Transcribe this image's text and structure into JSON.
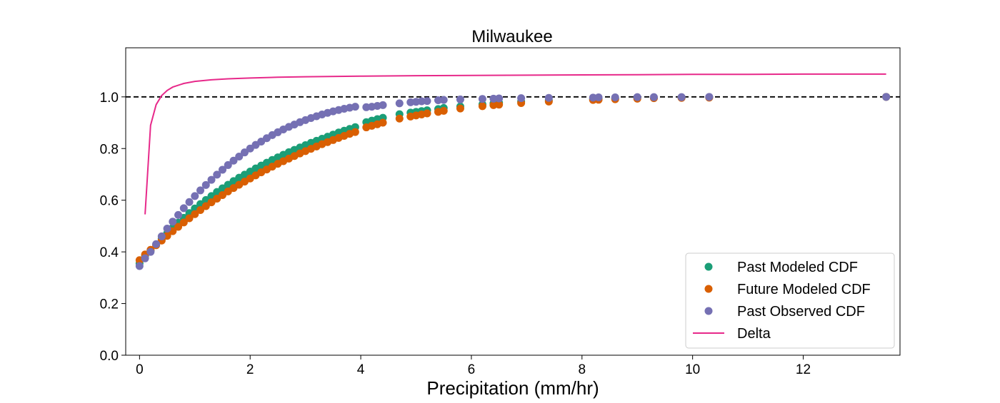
{
  "chart_data": {
    "type": "scatter",
    "title": "Milwaukee",
    "xlabel": "Precipitation (mm/hr)",
    "ylabel": "",
    "xlim": [
      -0.25,
      13.75
    ],
    "ylim": [
      0.0,
      1.19
    ],
    "x_ticks": [
      0,
      2,
      4,
      6,
      8,
      10,
      12
    ],
    "y_ticks": [
      0.0,
      0.2,
      0.4,
      0.6,
      0.8,
      1.0
    ],
    "y_tick_labels": [
      "0.0",
      "0.2",
      "0.4",
      "0.6",
      "0.8",
      "1.0"
    ],
    "reference_line": {
      "y": 1.0,
      "style": "dashed",
      "color": "#000000"
    },
    "grid": false,
    "legend_position": "lower-right",
    "series": [
      {
        "name": "Past Modeled CDF",
        "kind": "scatter",
        "color": "#1b9e77",
        "x": [
          0.0,
          0.1,
          0.2,
          0.3,
          0.4,
          0.5,
          0.6,
          0.7,
          0.8,
          0.9,
          1.0,
          1.1,
          1.2,
          1.3,
          1.4,
          1.5,
          1.6,
          1.7,
          1.8,
          1.9,
          2.0,
          2.1,
          2.2,
          2.3,
          2.4,
          2.5,
          2.6,
          2.7,
          2.8,
          2.9,
          3.0,
          3.1,
          3.2,
          3.3,
          3.4,
          3.5,
          3.6,
          3.7,
          3.8,
          3.9,
          4.1,
          4.2,
          4.3,
          4.4,
          4.7,
          4.9,
          5.0,
          5.1,
          5.2,
          5.4,
          5.5,
          5.8,
          6.2,
          6.4,
          6.5,
          6.9,
          7.4,
          8.2,
          8.3,
          8.6,
          9.0,
          9.3,
          9.8,
          10.3,
          13.5
        ],
        "y": [
          0.355,
          0.385,
          0.405,
          0.428,
          0.45,
          0.472,
          0.493,
          0.513,
          0.532,
          0.55,
          0.568,
          0.585,
          0.601,
          0.616,
          0.632,
          0.646,
          0.66,
          0.674,
          0.687,
          0.699,
          0.711,
          0.723,
          0.734,
          0.745,
          0.756,
          0.766,
          0.776,
          0.786,
          0.795,
          0.804,
          0.813,
          0.822,
          0.83,
          0.838,
          0.846,
          0.854,
          0.862,
          0.869,
          0.876,
          0.883,
          0.902,
          0.908,
          0.914,
          0.919,
          0.933,
          0.939,
          0.942,
          0.945,
          0.948,
          0.953,
          0.957,
          0.963,
          0.971,
          0.975,
          0.977,
          0.982,
          0.987,
          0.992,
          0.993,
          0.994,
          0.995,
          0.996,
          0.997,
          0.998,
          1.0
        ]
      },
      {
        "name": "Future Modeled CDF",
        "kind": "scatter",
        "color": "#d95f02",
        "x": [
          0.0,
          0.1,
          0.2,
          0.3,
          0.4,
          0.5,
          0.6,
          0.7,
          0.8,
          0.9,
          1.0,
          1.1,
          1.2,
          1.3,
          1.4,
          1.5,
          1.6,
          1.7,
          1.8,
          1.9,
          2.0,
          2.1,
          2.2,
          2.3,
          2.4,
          2.5,
          2.6,
          2.7,
          2.8,
          2.9,
          3.0,
          3.1,
          3.2,
          3.3,
          3.4,
          3.5,
          3.6,
          3.7,
          3.8,
          3.9,
          4.1,
          4.2,
          4.3,
          4.4,
          4.7,
          4.9,
          5.0,
          5.1,
          5.2,
          5.4,
          5.5,
          5.8,
          6.2,
          6.4,
          6.5,
          6.9,
          7.4,
          8.2,
          8.3,
          8.6,
          9.0,
          9.3,
          9.8,
          10.3,
          13.5
        ],
        "y": [
          0.368,
          0.39,
          0.408,
          0.426,
          0.444,
          0.462,
          0.48,
          0.497,
          0.514,
          0.53,
          0.546,
          0.562,
          0.577,
          0.592,
          0.606,
          0.62,
          0.634,
          0.647,
          0.66,
          0.672,
          0.684,
          0.696,
          0.708,
          0.719,
          0.73,
          0.741,
          0.751,
          0.761,
          0.771,
          0.781,
          0.79,
          0.799,
          0.808,
          0.817,
          0.825,
          0.833,
          0.841,
          0.849,
          0.857,
          0.864,
          0.882,
          0.888,
          0.894,
          0.9,
          0.916,
          0.924,
          0.928,
          0.932,
          0.936,
          0.942,
          0.946,
          0.955,
          0.964,
          0.968,
          0.97,
          0.976,
          0.982,
          0.988,
          0.989,
          0.991,
          0.993,
          0.995,
          0.996,
          0.997,
          1.0
        ]
      },
      {
        "name": "Past Observed CDF",
        "kind": "scatter",
        "color": "#7570b3",
        "x": [
          0.0,
          0.1,
          0.2,
          0.3,
          0.4,
          0.5,
          0.6,
          0.7,
          0.8,
          0.9,
          1.0,
          1.1,
          1.2,
          1.3,
          1.4,
          1.5,
          1.6,
          1.7,
          1.8,
          1.9,
          2.0,
          2.1,
          2.2,
          2.3,
          2.4,
          2.5,
          2.6,
          2.7,
          2.8,
          2.9,
          3.0,
          3.1,
          3.2,
          3.3,
          3.4,
          3.5,
          3.6,
          3.7,
          3.8,
          3.9,
          4.1,
          4.2,
          4.3,
          4.4,
          4.7,
          4.9,
          5.0,
          5.1,
          5.2,
          5.4,
          5.5,
          5.8,
          6.2,
          6.4,
          6.5,
          6.9,
          7.4,
          8.2,
          8.3,
          8.6,
          9.0,
          9.3,
          9.8,
          10.3,
          13.5
        ],
        "y": [
          0.345,
          0.375,
          0.4,
          0.43,
          0.46,
          0.49,
          0.517,
          0.543,
          0.569,
          0.593,
          0.616,
          0.638,
          0.659,
          0.679,
          0.699,
          0.718,
          0.736,
          0.753,
          0.769,
          0.785,
          0.8,
          0.814,
          0.827,
          0.84,
          0.852,
          0.863,
          0.874,
          0.884,
          0.893,
          0.902,
          0.91,
          0.918,
          0.925,
          0.932,
          0.938,
          0.944,
          0.949,
          0.954,
          0.958,
          0.962,
          0.96,
          0.962,
          0.965,
          0.968,
          0.975,
          0.979,
          0.981,
          0.983,
          0.984,
          0.987,
          0.988,
          0.99,
          0.992,
          0.993,
          0.994,
          0.995,
          0.996,
          0.997,
          0.998,
          0.998,
          0.999,
          0.999,
          0.999,
          1.0,
          1.0
        ]
      },
      {
        "name": "Delta",
        "kind": "line",
        "color": "#e7298a",
        "x": [
          0.1,
          0.2,
          0.3,
          0.4,
          0.5,
          0.6,
          0.8,
          1.0,
          1.3,
          1.6,
          2.0,
          2.5,
          3.0,
          4.0,
          5.0,
          6.0,
          7.0,
          8.0,
          9.0,
          10.0,
          11.0,
          12.0,
          13.0,
          13.5
        ],
        "y": [
          0.545,
          0.89,
          0.97,
          1.005,
          1.025,
          1.038,
          1.052,
          1.06,
          1.066,
          1.07,
          1.073,
          1.076,
          1.078,
          1.08,
          1.082,
          1.083,
          1.084,
          1.085,
          1.086,
          1.087,
          1.087,
          1.088,
          1.088,
          1.088
        ]
      }
    ]
  }
}
